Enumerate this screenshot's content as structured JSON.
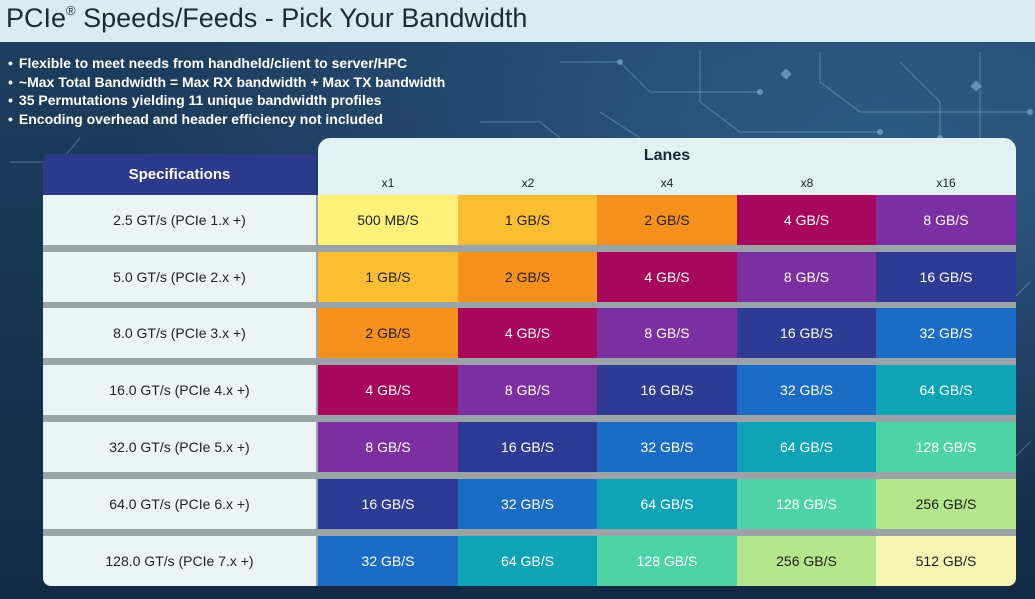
{
  "title": {
    "text": "PCIe",
    "reg": "®",
    "rest": " Speeds/Feeds - Pick Your Bandwidth"
  },
  "bullets": [
    "Flexible to meet needs from handheld/client to server/HPC",
    "~Max Total Bandwidth = Max RX bandwidth + Max TX bandwidth",
    "35 Permutations yielding 11 unique bandwidth profiles",
    "Encoding overhead and header efficiency not included"
  ],
  "table": {
    "spec_header": "Specifications",
    "lanes_label": "Lanes",
    "lanes": [
      "x1",
      "x2",
      "x4",
      "x8",
      "x16"
    ],
    "rows": [
      {
        "spec": "2.5 GT/s (PCIe 1.x +)",
        "cells": [
          "500 MB/S",
          "1 GB/S",
          "2 GB/S",
          "4 GB/S",
          "8 GB/S"
        ]
      },
      {
        "spec": "5.0 GT/s (PCIe 2.x +)",
        "cells": [
          "1 GB/S",
          "2 GB/S",
          "4 GB/S",
          "8 GB/S",
          "16 GB/S"
        ]
      },
      {
        "spec": "8.0 GT/s (PCIe 3.x +)",
        "cells": [
          "2 GB/S",
          "4 GB/S",
          "8 GB/S",
          "16 GB/S",
          "32 GB/S"
        ]
      },
      {
        "spec": "16.0 GT/s (PCIe 4.x +)",
        "cells": [
          "4 GB/S",
          "8 GB/S",
          "16 GB/S",
          "32 GB/S",
          "64 GB/S"
        ]
      },
      {
        "spec": "32.0 GT/s (PCIe 5.x +)",
        "cells": [
          "8 GB/S",
          "16 GB/S",
          "32 GB/S",
          "64 GB/S",
          "128 GB/S"
        ]
      },
      {
        "spec": "64.0 GT/s (PCIe 6.x +)",
        "cells": [
          "16 GB/S",
          "32 GB/S",
          "64 GB/S",
          "128 GB/S",
          "256 GB/S"
        ]
      },
      {
        "spec": "128.0 GT/s (PCIe 7.x +)",
        "cells": [
          "32 GB/S",
          "64 GB/S",
          "128 GB/S",
          "256 GB/S",
          "512 GB/S"
        ]
      }
    ]
  },
  "bandwidth_colors": {
    "500 MB/S": {
      "bg": "#fff27a",
      "fg": "#1e1e1e"
    },
    "1 GB/S": {
      "bg": "#fbbd32",
      "fg": "#1e1e1e"
    },
    "2 GB/S": {
      "bg": "#f6911e",
      "fg": "#1e1e1e"
    },
    "4 GB/S": {
      "bg": "#a8085c",
      "fg": "#ffffff"
    },
    "8 GB/S": {
      "bg": "#7b2fa1",
      "fg": "#ffffff"
    },
    "16 GB/S": {
      "bg": "#2d3b95",
      "fg": "#ffffff"
    },
    "32 GB/S": {
      "bg": "#1a6cc4",
      "fg": "#ffffff"
    },
    "64 GB/S": {
      "bg": "#0fa3b6",
      "fg": "#ffffff"
    },
    "128 GB/S": {
      "bg": "#4dd3a6",
      "fg": "#ffffff"
    },
    "256 GB/S": {
      "bg": "#b6e68c",
      "fg": "#1e1e1e"
    },
    "512 GB/S": {
      "bg": "#f5f6b4",
      "fg": "#1e1e1e"
    }
  }
}
